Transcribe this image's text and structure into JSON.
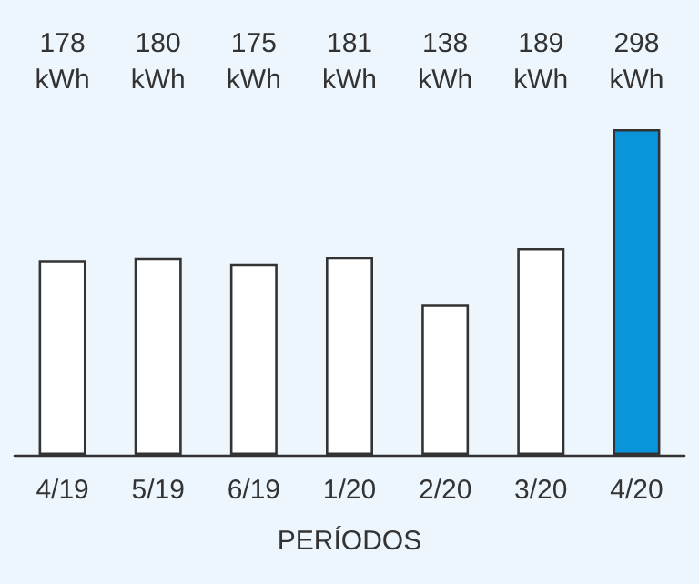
{
  "chart_data": {
    "type": "bar",
    "xlabel": "PERÍODOS",
    "categories": [
      "4/19",
      "5/19",
      "6/19",
      "1/20",
      "2/20",
      "3/20",
      "4/20"
    ],
    "values": [
      178,
      180,
      175,
      181,
      138,
      189,
      298
    ],
    "value_labels": [
      "178 kWh",
      "180 kWh",
      "175 kWh",
      "181 kWh",
      "138 kWh",
      "189 kWh",
      "298 kWh"
    ],
    "colors": [
      "#ffffff",
      "#ffffff",
      "#ffffff",
      "#ffffff",
      "#ffffff",
      "#ffffff",
      "#0a94da"
    ],
    "grid": false
  }
}
